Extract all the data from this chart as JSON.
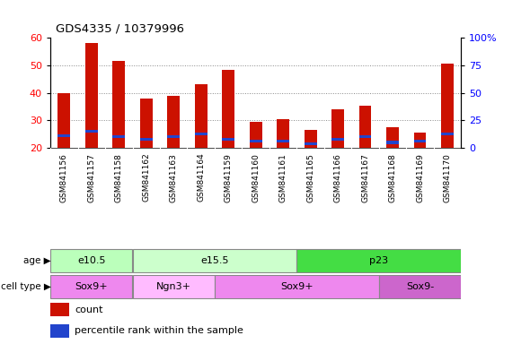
{
  "title": "GDS4335 / 10379996",
  "samples": [
    "GSM841156",
    "GSM841157",
    "GSM841158",
    "GSM841162",
    "GSM841163",
    "GSM841164",
    "GSM841159",
    "GSM841160",
    "GSM841161",
    "GSM841165",
    "GSM841166",
    "GSM841167",
    "GSM841168",
    "GSM841169",
    "GSM841170"
  ],
  "count_values": [
    40,
    58,
    51.5,
    38,
    39,
    43,
    48.5,
    29.5,
    30.5,
    26.5,
    34,
    35.5,
    27.5,
    25.5,
    50.5
  ],
  "percentile_values": [
    24.5,
    26,
    24,
    23,
    24,
    25,
    23,
    22.5,
    22.5,
    21.5,
    23,
    24,
    22,
    22.5,
    25
  ],
  "ymin": 20,
  "ymax": 60,
  "yticks_left": [
    20,
    30,
    40,
    50,
    60
  ],
  "yticks_right": [
    0,
    25,
    50,
    75,
    100
  ],
  "bar_color": "#cc1100",
  "percentile_color": "#2244cc",
  "age_groups": [
    {
      "label": "e10.5",
      "start": 0,
      "end": 3,
      "color": "#bbffbb"
    },
    {
      "label": "e15.5",
      "start": 3,
      "end": 9,
      "color": "#ccffcc"
    },
    {
      "label": "p23",
      "start": 9,
      "end": 15,
      "color": "#44dd44"
    }
  ],
  "cell_type_groups": [
    {
      "label": "Sox9+",
      "start": 0,
      "end": 3,
      "color": "#ee88ee"
    },
    {
      "label": "Ngn3+",
      "start": 3,
      "end": 6,
      "color": "#ffbbff"
    },
    {
      "label": "Sox9+",
      "start": 6,
      "end": 12,
      "color": "#ee88ee"
    },
    {
      "label": "Sox9-",
      "start": 12,
      "end": 15,
      "color": "#cc66cc"
    }
  ],
  "age_label": "age",
  "cell_type_label": "cell type",
  "legend_count": "count",
  "legend_percentile": "percentile rank within the sample",
  "bg_color": "#ffffff",
  "plot_bg": "#ffffff",
  "grid_color": "#888888",
  "label_area_color": "#dddddd"
}
